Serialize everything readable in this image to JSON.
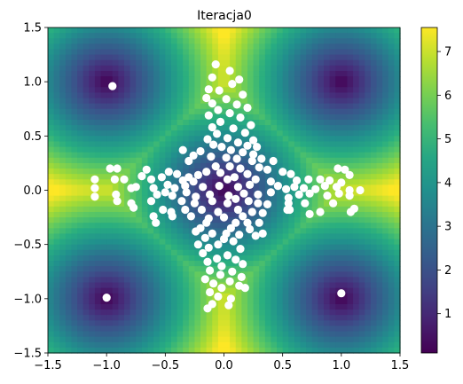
{
  "chart_data": {
    "type": "heatmap",
    "title": "Iteracja0",
    "xlabel": "",
    "ylabel": "",
    "xlim": [
      -1.5,
      1.5
    ],
    "ylim": [
      -1.5,
      1.5
    ],
    "x_ticks": [
      -1.5,
      -1.0,
      -0.5,
      0.0,
      0.5,
      1.0,
      1.5
    ],
    "y_ticks": [
      -1.5,
      -1.0,
      -0.5,
      0.0,
      0.5,
      1.0,
      1.5
    ],
    "x_tick_labels": [
      "−1.5",
      "−1.0",
      "−0.5",
      "0.0",
      "0.5",
      "1.0",
      "1.5"
    ],
    "y_tick_labels": [
      "−1.5",
      "−1.0",
      "−0.5",
      "0.0",
      "0.5",
      "1.0",
      "1.5"
    ],
    "colormap": "viridis",
    "colorbar": {
      "range": [
        0.1,
        7.55
      ],
      "ticks": [
        1,
        2,
        3,
        4,
        5,
        6,
        7
      ],
      "tick_labels": [
        "1",
        "2",
        "3",
        "4",
        "5",
        "6",
        "7"
      ]
    },
    "heatmap_minima": [
      {
        "x": 0.0,
        "y": 0.0
      },
      {
        "x": -1.0,
        "y": 1.0
      },
      {
        "x": 1.0,
        "y": 1.0
      },
      {
        "x": -1.0,
        "y": -1.0
      },
      {
        "x": 1.0,
        "y": -1.0
      }
    ],
    "grid": false,
    "scatter": {
      "color": "#ffffff",
      "points": [
        [
          -0.95,
          0.96
        ],
        [
          -1.0,
          -0.99
        ],
        [
          1.0,
          -0.95
        ],
        [
          -0.07,
          1.16
        ],
        [
          0.05,
          1.1
        ],
        [
          0.13,
          1.02
        ],
        [
          -0.1,
          1.04
        ],
        [
          0.07,
          0.98
        ],
        [
          -0.13,
          0.93
        ],
        [
          -0.04,
          0.92
        ],
        [
          0.16,
          0.88
        ],
        [
          -0.15,
          0.85
        ],
        [
          0.02,
          0.84
        ],
        [
          -0.1,
          0.8
        ],
        [
          0.11,
          0.79
        ],
        [
          0.2,
          0.76
        ],
        [
          -0.05,
          0.74
        ],
        [
          0.05,
          0.71
        ],
        [
          -0.13,
          0.69
        ],
        [
          0.14,
          0.67
        ],
        [
          -0.03,
          0.63
        ],
        [
          0.23,
          0.6
        ],
        [
          -0.1,
          0.58
        ],
        [
          0.08,
          0.57
        ],
        [
          0.18,
          0.53
        ],
        [
          -0.06,
          0.52
        ],
        [
          0.03,
          0.48
        ],
        [
          -0.14,
          0.47
        ],
        [
          0.25,
          0.46
        ],
        [
          0.12,
          0.44
        ],
        [
          -0.09,
          0.42
        ],
        [
          -0.02,
          0.4
        ],
        [
          0.2,
          0.41
        ],
        [
          0.28,
          0.4
        ],
        [
          -0.35,
          0.37
        ],
        [
          -0.2,
          0.36
        ],
        [
          0.06,
          0.37
        ],
        [
          0.16,
          0.35
        ],
        [
          0.25,
          0.33
        ],
        [
          -0.26,
          0.32
        ],
        [
          -0.11,
          0.31
        ],
        [
          0.02,
          0.3
        ],
        [
          0.11,
          0.29
        ],
        [
          0.32,
          0.29
        ],
        [
          -0.3,
          0.27
        ],
        [
          0.24,
          0.27
        ],
        [
          0.42,
          0.27
        ],
        [
          -0.07,
          0.22
        ],
        [
          0.05,
          0.22
        ],
        [
          0.14,
          0.2
        ],
        [
          0.3,
          0.21
        ],
        [
          0.37,
          0.19
        ],
        [
          -0.15,
          0.17
        ],
        [
          -0.03,
          0.16
        ],
        [
          0.2,
          0.15
        ],
        [
          -0.97,
          0.2
        ],
        [
          -0.91,
          0.2
        ],
        [
          -0.66,
          0.19
        ],
        [
          -0.47,
          0.17
        ],
        [
          -0.4,
          0.15
        ],
        [
          -0.3,
          0.12
        ],
        [
          -0.22,
          0.14
        ],
        [
          0.5,
          0.17
        ],
        [
          0.57,
          0.15
        ],
        [
          0.97,
          0.2
        ],
        [
          1.03,
          0.19
        ],
        [
          1.07,
          0.14
        ],
        [
          -1.1,
          0.1
        ],
        [
          -0.93,
          0.1
        ],
        [
          -0.85,
          0.1
        ],
        [
          -0.7,
          0.13
        ],
        [
          -0.62,
          0.1
        ],
        [
          -0.53,
          0.12
        ],
        [
          -0.35,
          0.09
        ],
        [
          -0.26,
          0.08
        ],
        [
          0.03,
          0.1
        ],
        [
          0.09,
          0.12
        ],
        [
          0.27,
          0.1
        ],
        [
          0.4,
          0.08
        ],
        [
          0.62,
          0.09
        ],
        [
          0.72,
          0.1
        ],
        [
          0.82,
          0.1
        ],
        [
          0.9,
          0.09
        ],
        [
          1.0,
          0.07
        ],
        [
          -1.1,
          0.02
        ],
        [
          -0.79,
          0.02
        ],
        [
          -0.75,
          0.03
        ],
        [
          -0.6,
          0.02
        ],
        [
          -0.48,
          0.05
        ],
        [
          -0.42,
          0.02
        ],
        [
          -0.33,
          0.04
        ],
        [
          -0.18,
          0.03
        ],
        [
          -0.04,
          0.04
        ],
        [
          0.12,
          0.03
        ],
        [
          0.22,
          0.05
        ],
        [
          0.46,
          0.04
        ],
        [
          0.53,
          0.01
        ],
        [
          0.6,
          0.03
        ],
        [
          0.68,
          0.02
        ],
        [
          0.78,
          0.01
        ],
        [
          0.86,
          0.04
        ],
        [
          0.96,
          0.03
        ],
        [
          1.07,
          0.0
        ],
        [
          1.16,
          0.0
        ],
        [
          -1.1,
          -0.06
        ],
        [
          -0.92,
          -0.04
        ],
        [
          -0.57,
          -0.04
        ],
        [
          -0.5,
          -0.02
        ],
        [
          -0.44,
          -0.05
        ],
        [
          -0.32,
          -0.02
        ],
        [
          -0.24,
          -0.06
        ],
        [
          -0.12,
          -0.04
        ],
        [
          0.04,
          -0.05
        ],
        [
          0.17,
          -0.03
        ],
        [
          0.29,
          -0.04
        ],
        [
          0.4,
          -0.02
        ],
        [
          0.55,
          -0.07
        ],
        [
          0.64,
          -0.04
        ],
        [
          0.73,
          -0.03
        ],
        [
          0.88,
          -0.05
        ],
        [
          0.98,
          -0.03
        ],
        [
          1.07,
          -0.05
        ],
        [
          -0.91,
          -0.1
        ],
        [
          -0.79,
          -0.12
        ],
        [
          -0.62,
          -0.1
        ],
        [
          -0.36,
          -0.1
        ],
        [
          -0.25,
          -0.12
        ],
        [
          -0.1,
          -0.1
        ],
        [
          0.03,
          -0.12
        ],
        [
          0.1,
          -0.08
        ],
        [
          0.21,
          -0.1
        ],
        [
          0.29,
          -0.12
        ],
        [
          0.37,
          -0.13
        ],
        [
          0.55,
          -0.12
        ],
        [
          0.69,
          -0.12
        ],
        [
          0.93,
          -0.12
        ],
        [
          1.11,
          -0.17
        ],
        [
          -0.77,
          -0.16
        ],
        [
          -0.52,
          -0.18
        ],
        [
          -0.45,
          -0.2
        ],
        [
          -0.33,
          -0.18
        ],
        [
          -0.19,
          -0.18
        ],
        [
          -0.05,
          -0.2
        ],
        [
          0.12,
          -0.18
        ],
        [
          0.24,
          -0.2
        ],
        [
          0.33,
          -0.21
        ],
        [
          0.54,
          -0.18
        ],
        [
          0.82,
          -0.2
        ],
        [
          1.08,
          -0.2
        ],
        [
          -0.6,
          -0.24
        ],
        [
          -0.44,
          -0.24
        ],
        [
          -0.28,
          -0.24
        ],
        [
          -0.13,
          -0.26
        ],
        [
          0.0,
          -0.25
        ],
        [
          0.16,
          -0.24
        ],
        [
          0.56,
          -0.18
        ],
        [
          0.73,
          -0.22
        ],
        [
          -0.58,
          -0.3
        ],
        [
          -0.15,
          -0.3
        ],
        [
          0.1,
          -0.3
        ],
        [
          0.2,
          -0.3
        ],
        [
          0.3,
          -0.3
        ],
        [
          0.06,
          -0.35
        ],
        [
          -0.2,
          -0.35
        ],
        [
          0.22,
          -0.36
        ],
        [
          -0.1,
          -0.4
        ],
        [
          -0.24,
          -0.38
        ],
        [
          0.02,
          -0.4
        ],
        [
          0.13,
          -0.41
        ],
        [
          0.27,
          -0.42
        ],
        [
          0.33,
          -0.4
        ],
        [
          -0.16,
          -0.44
        ],
        [
          0.0,
          -0.45
        ],
        [
          0.08,
          -0.47
        ],
        [
          -0.05,
          -0.5
        ],
        [
          -0.22,
          -0.5
        ],
        [
          -0.13,
          -0.53
        ],
        [
          0.14,
          -0.54
        ],
        [
          -0.18,
          -0.58
        ],
        [
          0.03,
          -0.6
        ],
        [
          -0.06,
          -0.63
        ],
        [
          0.1,
          -0.64
        ],
        [
          -0.14,
          -0.66
        ],
        [
          0.16,
          -0.68
        ],
        [
          -0.02,
          -0.7
        ],
        [
          -0.12,
          -0.74
        ],
        [
          0.07,
          -0.75
        ],
        [
          -0.03,
          -0.78
        ],
        [
          0.15,
          -0.8
        ],
        [
          -0.16,
          -0.82
        ],
        [
          0.05,
          -0.84
        ],
        [
          -0.09,
          -0.86
        ],
        [
          0.13,
          -0.88
        ],
        [
          -0.02,
          -0.9
        ],
        [
          0.18,
          -0.9
        ],
        [
          -0.12,
          -0.94
        ],
        [
          -0.05,
          -0.98
        ],
        [
          0.06,
          -1.0
        ],
        [
          -0.1,
          -1.05
        ],
        [
          0.04,
          -1.06
        ],
        [
          -0.14,
          -1.09
        ]
      ]
    }
  }
}
